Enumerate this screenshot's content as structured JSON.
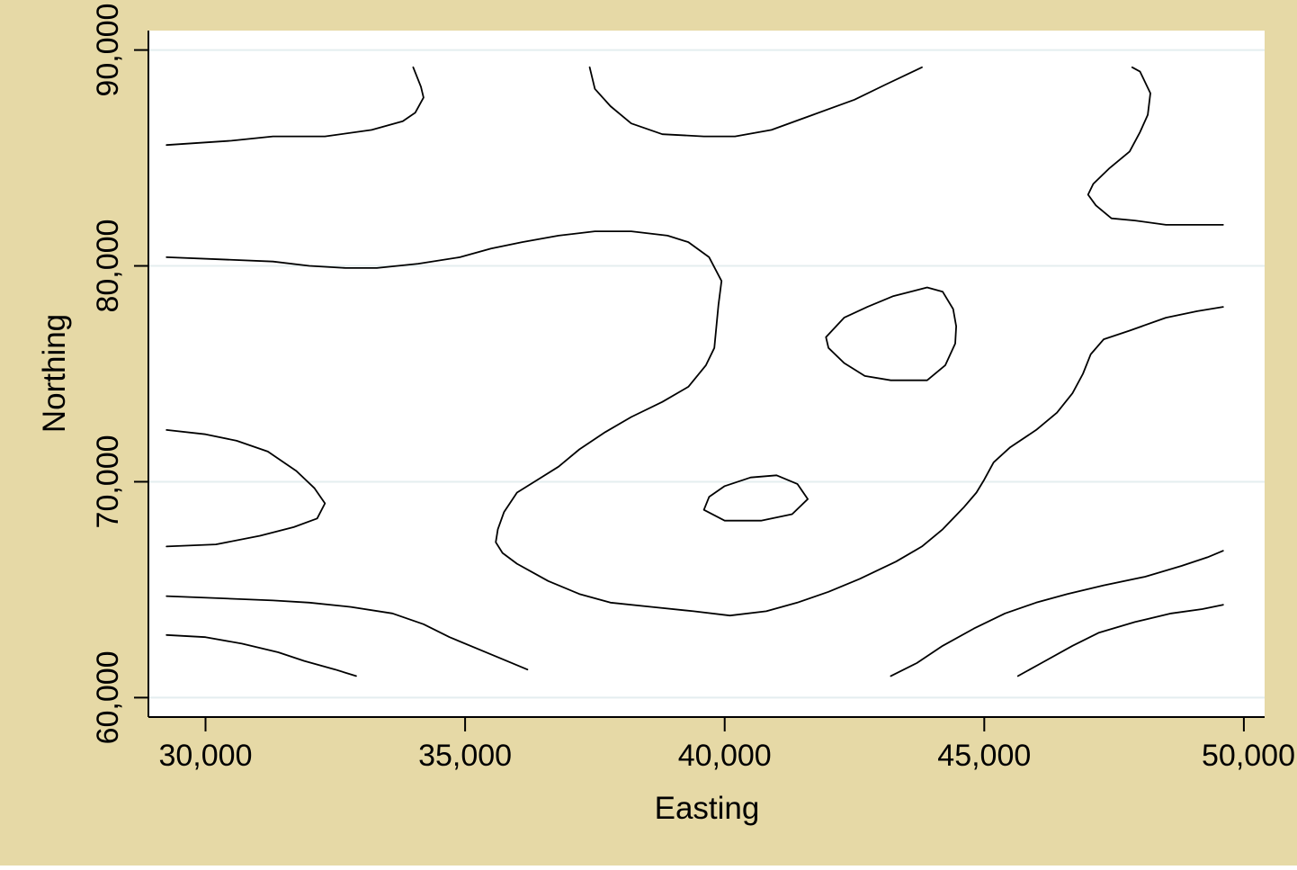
{
  "colors": {
    "background": "#e6d9a6",
    "plot_background": "#ffffff",
    "gridline": "#e4eeef",
    "axis": "#000000",
    "contour": "#000000"
  },
  "chart_data": {
    "type": "contour",
    "title": "",
    "xlabel": "Easting",
    "ylabel": "Northing",
    "xlim": [
      28900,
      50400
    ],
    "ylim": [
      59100,
      90900
    ],
    "xticks": [
      30000,
      35000,
      40000,
      45000,
      50000
    ],
    "xtick_labels": [
      "30,000",
      "35,000",
      "40,000",
      "45,000",
      "50,000"
    ],
    "yticks": [
      60000,
      70000,
      80000,
      90000
    ],
    "ytick_labels": [
      "60,000",
      "70,000",
      "80,000",
      "90,000"
    ],
    "grid": "horizontal",
    "legend": "none",
    "contours": [
      {
        "closed": false,
        "points": [
          [
            29250,
            85600
          ],
          [
            30500,
            85800
          ],
          [
            31300,
            86000
          ],
          [
            32300,
            86000
          ],
          [
            33200,
            86300
          ],
          [
            33800,
            86700
          ],
          [
            34040,
            87100
          ],
          [
            34200,
            87800
          ],
          [
            34150,
            88300
          ],
          [
            34000,
            89200
          ]
        ]
      },
      {
        "closed": false,
        "points": [
          [
            37400,
            89200
          ],
          [
            37500,
            88200
          ],
          [
            37800,
            87400
          ],
          [
            38200,
            86600
          ],
          [
            38800,
            86100
          ],
          [
            39600,
            86000
          ],
          [
            40200,
            86000
          ],
          [
            40900,
            86300
          ],
          [
            41700,
            87000
          ],
          [
            42500,
            87700
          ],
          [
            43100,
            88400
          ],
          [
            43800,
            89200
          ]
        ]
      },
      {
        "closed": false,
        "points": [
          [
            47850,
            89200
          ],
          [
            48000,
            89000
          ],
          [
            48200,
            88000
          ],
          [
            48150,
            87000
          ],
          [
            48000,
            86200
          ],
          [
            47800,
            85300
          ],
          [
            47400,
            84500
          ],
          [
            47100,
            83800
          ],
          [
            47000,
            83300
          ],
          [
            47150,
            82800
          ],
          [
            47450,
            82200
          ],
          [
            47900,
            82100
          ],
          [
            48500,
            81900
          ],
          [
            49000,
            81900
          ],
          [
            49600,
            81900
          ]
        ]
      },
      {
        "closed": false,
        "points": [
          [
            29250,
            80400
          ],
          [
            30300,
            80300
          ],
          [
            31300,
            80200
          ],
          [
            32000,
            80000
          ],
          [
            32700,
            79900
          ],
          [
            33300,
            79900
          ],
          [
            34100,
            80100
          ],
          [
            34900,
            80400
          ],
          [
            35500,
            80800
          ],
          [
            36100,
            81100
          ],
          [
            36800,
            81400
          ],
          [
            37500,
            81600
          ],
          [
            38200,
            81600
          ],
          [
            38900,
            81400
          ],
          [
            39300,
            81100
          ],
          [
            39700,
            80400
          ],
          [
            39940,
            79300
          ],
          [
            39880,
            78200
          ],
          [
            39840,
            77200
          ],
          [
            39800,
            76200
          ],
          [
            39640,
            75400
          ],
          [
            39300,
            74400
          ],
          [
            38800,
            73700
          ],
          [
            38200,
            73000
          ],
          [
            37700,
            72300
          ],
          [
            37200,
            71500
          ],
          [
            36800,
            70700
          ],
          [
            36400,
            70100
          ],
          [
            36000,
            69500
          ],
          [
            35750,
            68600
          ],
          [
            35630,
            67800
          ],
          [
            35590,
            67200
          ],
          [
            35720,
            66700
          ],
          [
            36000,
            66200
          ],
          [
            36300,
            65800
          ],
          [
            36600,
            65400
          ],
          [
            37200,
            64800
          ],
          [
            37800,
            64400
          ],
          [
            38600,
            64200
          ],
          [
            39400,
            64000
          ],
          [
            40100,
            63800
          ],
          [
            40800,
            64000
          ],
          [
            41400,
            64400
          ],
          [
            42000,
            64900
          ],
          [
            42600,
            65500
          ],
          [
            43300,
            66300
          ],
          [
            43800,
            67000
          ],
          [
            44200,
            67800
          ],
          [
            44600,
            68800
          ],
          [
            44850,
            69500
          ],
          [
            45000,
            70100
          ],
          [
            45180,
            70900
          ],
          [
            45500,
            71600
          ],
          [
            46000,
            72400
          ],
          [
            46400,
            73200
          ],
          [
            46700,
            74100
          ],
          [
            46900,
            75000
          ],
          [
            47050,
            75900
          ],
          [
            47300,
            76600
          ],
          [
            47800,
            77000
          ],
          [
            48500,
            77600
          ],
          [
            49100,
            77900
          ],
          [
            49600,
            78100
          ]
        ]
      },
      {
        "closed": true,
        "points": [
          [
            41950,
            76700
          ],
          [
            42300,
            77600
          ],
          [
            42750,
            78100
          ],
          [
            43250,
            78600
          ],
          [
            43900,
            79000
          ],
          [
            44200,
            78800
          ],
          [
            44400,
            78000
          ],
          [
            44460,
            77200
          ],
          [
            44440,
            76400
          ],
          [
            44250,
            75400
          ],
          [
            43900,
            74700
          ],
          [
            43200,
            74700
          ],
          [
            42700,
            74900
          ],
          [
            42300,
            75500
          ],
          [
            42000,
            76200
          ]
        ]
      },
      {
        "closed": false,
        "points": [
          [
            29250,
            72400
          ],
          [
            30000,
            72200
          ],
          [
            30600,
            71900
          ],
          [
            31200,
            71400
          ],
          [
            31750,
            70500
          ],
          [
            32100,
            69700
          ],
          [
            32300,
            69000
          ],
          [
            32150,
            68300
          ],
          [
            31700,
            67900
          ],
          [
            31050,
            67500
          ],
          [
            30200,
            67100
          ],
          [
            29250,
            67000
          ]
        ]
      },
      {
        "closed": true,
        "points": [
          [
            39700,
            69300
          ],
          [
            40000,
            69800
          ],
          [
            40500,
            70200
          ],
          [
            41000,
            70300
          ],
          [
            41400,
            69900
          ],
          [
            41600,
            69200
          ],
          [
            41300,
            68500
          ],
          [
            40700,
            68200
          ],
          [
            40000,
            68200
          ],
          [
            39600,
            68700
          ]
        ]
      },
      {
        "closed": false,
        "points": [
          [
            29250,
            64700
          ],
          [
            30300,
            64600
          ],
          [
            31300,
            64500
          ],
          [
            32000,
            64400
          ],
          [
            32800,
            64200
          ],
          [
            33600,
            63900
          ],
          [
            34200,
            63400
          ],
          [
            34700,
            62800
          ],
          [
            35300,
            62200
          ],
          [
            35800,
            61700
          ],
          [
            36200,
            61300
          ]
        ]
      },
      {
        "closed": false,
        "points": [
          [
            29250,
            62900
          ],
          [
            30000,
            62800
          ],
          [
            30700,
            62500
          ],
          [
            31400,
            62100
          ],
          [
            31900,
            61700
          ],
          [
            32500,
            61300
          ],
          [
            32900,
            61000
          ]
        ]
      },
      {
        "closed": false,
        "points": [
          [
            43200,
            61000
          ],
          [
            43700,
            61600
          ],
          [
            44200,
            62400
          ],
          [
            44800,
            63200
          ],
          [
            45400,
            63900
          ],
          [
            46000,
            64400
          ],
          [
            46600,
            64800
          ],
          [
            47300,
            65200
          ],
          [
            48100,
            65600
          ],
          [
            48800,
            66100
          ],
          [
            49300,
            66500
          ],
          [
            49600,
            66800
          ]
        ]
      },
      {
        "closed": false,
        "points": [
          [
            45650,
            61000
          ],
          [
            46100,
            61600
          ],
          [
            46700,
            62400
          ],
          [
            47200,
            63000
          ],
          [
            47900,
            63500
          ],
          [
            48600,
            63900
          ],
          [
            49200,
            64100
          ],
          [
            49600,
            64300
          ]
        ]
      }
    ]
  }
}
